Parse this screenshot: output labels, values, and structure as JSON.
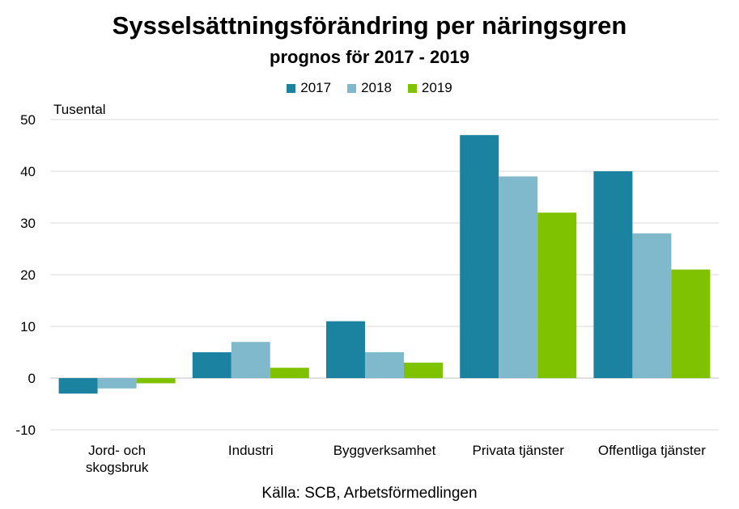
{
  "title": "Sysselsättningsförändring per näringsgren",
  "subtitle": "prognos för 2017 - 2019",
  "source": "Källa: SCB, Arbetsförmedlingen",
  "colors": {
    "2017": "#1b82a0",
    "2018": "#80b9cb",
    "2019": "#7fc200",
    "grid": "#d9d9d9",
    "axis": "#bfbfbf"
  },
  "chart_data": {
    "type": "bar",
    "title": "Sysselsättningsförändring per näringsgren",
    "subtitle": "prognos för 2017 - 2019",
    "ylabel": "Tusental",
    "xlabel": "",
    "ylim": [
      -10,
      50
    ],
    "yticks": [
      -10,
      0,
      10,
      20,
      30,
      40,
      50
    ],
    "grid": true,
    "legend_position": "top",
    "categories": [
      [
        "Jord- och",
        "skogsbruk"
      ],
      [
        "Industri"
      ],
      [
        "Byggverksamhet"
      ],
      [
        "Privata tjänster"
      ],
      [
        "Offentliga tjänster"
      ]
    ],
    "series": [
      {
        "name": "2017",
        "color": "#1b82a0",
        "values": [
          -3,
          5,
          11,
          47,
          40
        ]
      },
      {
        "name": "2018",
        "color": "#80b9cb",
        "values": [
          -2,
          7,
          5,
          39,
          28
        ]
      },
      {
        "name": "2019",
        "color": "#7fc200",
        "values": [
          -1,
          2,
          3,
          32,
          21
        ]
      }
    ]
  }
}
